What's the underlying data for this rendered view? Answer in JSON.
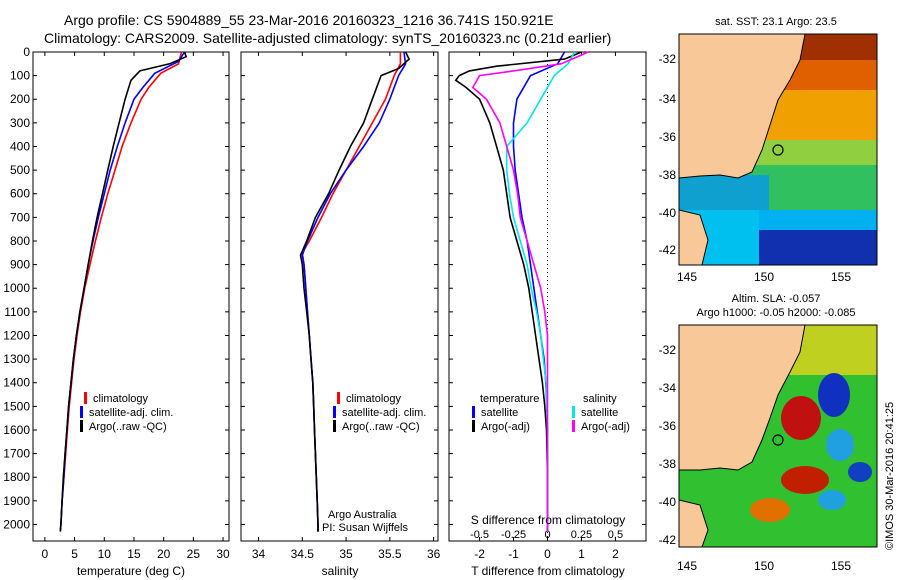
{
  "header": {
    "line1": "Argo profile: CS 5904889_55 23-Mar-2016 20160323_1216 36.741S 150.921E",
    "line2": "Climatology: CARS2009. Satellite-adjusted climatology: synTS_20160323.nc (0.21d earlier)"
  },
  "colors": {
    "climatology": "#ff0000",
    "satellite": "#0000ff",
    "argo": "#000000",
    "satellite_salinity": "#00e5ee",
    "argo_adj_salinity": "#ff00ff"
  },
  "chart_data": [
    {
      "type": "line",
      "xlabel": "temperature (deg C)",
      "xticks": [
        0,
        5,
        10,
        15,
        20,
        25,
        30
      ],
      "xlim": [
        -2,
        31
      ],
      "ylim": [
        2070,
        0
      ],
      "yticks": [
        0,
        100,
        200,
        300,
        400,
        500,
        600,
        700,
        800,
        900,
        1000,
        1100,
        1200,
        1300,
        1400,
        1500,
        1600,
        1700,
        1800,
        1900,
        2000
      ],
      "legend": [
        "climatology",
        "satellite-adj. clim.",
        "Argo(..raw -QC)"
      ],
      "series": [
        {
          "name": "climatology",
          "color": "#ff0000",
          "points": [
            [
              23.0,
              0
            ],
            [
              22.5,
              50
            ],
            [
              19.5,
              90
            ],
            [
              17.5,
              150
            ],
            [
              16.2,
              200
            ],
            [
              14.5,
              300
            ],
            [
              13.0,
              400
            ],
            [
              11.8,
              500
            ],
            [
              10.6,
              600
            ],
            [
              9.5,
              700
            ],
            [
              8.5,
              800
            ],
            [
              7.6,
              900
            ],
            [
              6.7,
              1000
            ],
            [
              6.0,
              1100
            ],
            [
              5.4,
              1200
            ],
            [
              4.9,
              1300
            ],
            [
              4.5,
              1400
            ],
            [
              4.1,
              1500
            ],
            [
              3.8,
              1600
            ],
            [
              3.5,
              1700
            ],
            [
              3.2,
              1800
            ],
            [
              2.9,
              1900
            ],
            [
              2.7,
              2000
            ],
            [
              2.6,
              2030
            ]
          ]
        },
        {
          "name": "satellite-adj. clim.",
          "color": "#0000ff",
          "points": [
            [
              23.5,
              0
            ],
            [
              22.5,
              40
            ],
            [
              18.5,
              90
            ],
            [
              16.5,
              150
            ],
            [
              15.0,
              200
            ],
            [
              13.5,
              300
            ],
            [
              12.2,
              400
            ],
            [
              11.0,
              500
            ],
            [
              10.0,
              600
            ],
            [
              9.0,
              700
            ],
            [
              8.1,
              800
            ],
            [
              7.3,
              900
            ],
            [
              6.6,
              1000
            ],
            [
              5.9,
              1100
            ],
            [
              5.3,
              1200
            ],
            [
              4.8,
              1300
            ],
            [
              4.4,
              1400
            ],
            [
              4.0,
              1500
            ],
            [
              3.7,
              1600
            ],
            [
              3.4,
              1700
            ],
            [
              3.2,
              1800
            ],
            [
              2.9,
              1900
            ],
            [
              2.7,
              2000
            ],
            [
              2.6,
              2030
            ]
          ]
        },
        {
          "name": "Argo(..raw -QC)",
          "color": "#000000",
          "points": [
            [
              23.5,
              0
            ],
            [
              23.8,
              20
            ],
            [
              21.0,
              50
            ],
            [
              16.0,
              80
            ],
            [
              14.5,
              120
            ],
            [
              13.5,
              200
            ],
            [
              12.5,
              300
            ],
            [
              11.5,
              400
            ],
            [
              10.6,
              500
            ],
            [
              9.7,
              600
            ],
            [
              8.8,
              700
            ],
            [
              8.0,
              800
            ],
            [
              7.3,
              900
            ],
            [
              6.6,
              1000
            ],
            [
              5.9,
              1100
            ],
            [
              5.3,
              1200
            ],
            [
              4.8,
              1300
            ],
            [
              4.4,
              1400
            ],
            [
              4.0,
              1500
            ],
            [
              3.7,
              1600
            ],
            [
              3.4,
              1700
            ],
            [
              3.1,
              1800
            ],
            [
              2.9,
              1900
            ],
            [
              2.7,
              2000
            ],
            [
              2.6,
              2030
            ]
          ]
        }
      ]
    },
    {
      "type": "line",
      "xlabel": "salinity",
      "xticks": [
        34,
        34.5,
        35,
        35.5,
        36
      ],
      "xlim": [
        33.8,
        36.05
      ],
      "ylim": [
        2070,
        0
      ],
      "legend": [
        "climatology",
        "satellite-adj. clim.",
        "Argo(..raw -QC)"
      ],
      "annotation": [
        "Argo Australia",
        "PI: Susan Wijffels"
      ],
      "series": [
        {
          "name": "climatology",
          "color": "#ff0000",
          "points": [
            [
              35.62,
              0
            ],
            [
              35.62,
              50
            ],
            [
              35.55,
              100
            ],
            [
              35.45,
              200
            ],
            [
              35.3,
              300
            ],
            [
              35.15,
              400
            ],
            [
              35.0,
              500
            ],
            [
              34.85,
              600
            ],
            [
              34.72,
              700
            ],
            [
              34.58,
              800
            ],
            [
              34.5,
              850
            ],
            [
              34.52,
              900
            ],
            [
              34.54,
              1000
            ],
            [
              34.56,
              1100
            ],
            [
              34.58,
              1200
            ],
            [
              34.6,
              1300
            ],
            [
              34.62,
              1400
            ],
            [
              34.63,
              1500
            ],
            [
              34.64,
              1600
            ],
            [
              34.65,
              1700
            ],
            [
              34.66,
              1800
            ],
            [
              34.67,
              1900
            ],
            [
              34.68,
              2000
            ],
            [
              34.68,
              2030
            ]
          ]
        },
        {
          "name": "satellite-adj. clim.",
          "color": "#0000ff",
          "points": [
            [
              35.66,
              0
            ],
            [
              35.68,
              50
            ],
            [
              35.6,
              100
            ],
            [
              35.5,
              200
            ],
            [
              35.38,
              300
            ],
            [
              35.2,
              400
            ],
            [
              35.0,
              500
            ],
            [
              34.82,
              600
            ],
            [
              34.68,
              700
            ],
            [
              34.56,
              800
            ],
            [
              34.5,
              860
            ],
            [
              34.52,
              900
            ],
            [
              34.54,
              1000
            ],
            [
              34.56,
              1100
            ],
            [
              34.58,
              1200
            ],
            [
              34.6,
              1300
            ],
            [
              34.62,
              1400
            ],
            [
              34.63,
              1500
            ],
            [
              34.64,
              1600
            ],
            [
              34.65,
              1700
            ],
            [
              34.66,
              1800
            ],
            [
              34.67,
              1900
            ],
            [
              34.68,
              2000
            ],
            [
              34.68,
              2030
            ]
          ]
        },
        {
          "name": "Argo(..raw -QC)",
          "color": "#000000",
          "points": [
            [
              35.68,
              0
            ],
            [
              35.72,
              30
            ],
            [
              35.6,
              70
            ],
            [
              35.4,
              100
            ],
            [
              35.3,
              200
            ],
            [
              35.2,
              300
            ],
            [
              35.05,
              400
            ],
            [
              34.92,
              500
            ],
            [
              34.8,
              600
            ],
            [
              34.65,
              700
            ],
            [
              34.55,
              800
            ],
            [
              34.48,
              860
            ],
            [
              34.5,
              900
            ],
            [
              34.52,
              1000
            ],
            [
              34.55,
              1100
            ],
            [
              34.58,
              1200
            ],
            [
              34.6,
              1300
            ],
            [
              34.62,
              1400
            ],
            [
              34.63,
              1500
            ],
            [
              34.64,
              1600
            ],
            [
              34.65,
              1700
            ],
            [
              34.66,
              1800
            ],
            [
              34.67,
              1900
            ],
            [
              34.68,
              2000
            ],
            [
              34.68,
              2030
            ]
          ]
        }
      ]
    },
    {
      "type": "line",
      "xlabel": "T difference from climatology",
      "xlabel_top": "S difference from climatology",
      "xticks": [
        -2,
        -1,
        0,
        1,
        2
      ],
      "xtick_labels": [
        "-2",
        "-1",
        "0",
        "1",
        "2"
      ],
      "top_ticks": [
        -0.5,
        -0.25,
        0,
        0.25,
        0.5
      ],
      "top_tick_labels": [
        "-0.5",
        "-0.25",
        "0",
        "0.25",
        "0.5"
      ],
      "xlim": [
        -2.9,
        2.9
      ],
      "ylim": [
        2070,
        0
      ],
      "legend_left": [
        "temperature",
        "satellite",
        "Argo(-adj)"
      ],
      "legend_right": [
        "salinity",
        "satellite",
        "Argo(-adj)"
      ],
      "series": [
        {
          "name": "satellite",
          "color": "#0000ff",
          "points": [
            [
              0.5,
              0
            ],
            [
              0.3,
              50
            ],
            [
              -0.5,
              100
            ],
            [
              -0.9,
              200
            ],
            [
              -1.0,
              300
            ],
            [
              -1.0,
              400
            ],
            [
              -0.95,
              500
            ],
            [
              -0.85,
              600
            ],
            [
              -0.75,
              700
            ],
            [
              -0.6,
              800
            ],
            [
              -0.5,
              900
            ],
            [
              -0.4,
              1000
            ],
            [
              -0.3,
              1100
            ],
            [
              -0.2,
              1200
            ],
            [
              -0.1,
              1300
            ],
            [
              -0.05,
              1400
            ],
            [
              -0.02,
              1500
            ],
            [
              0,
              1600
            ],
            [
              0,
              1800
            ],
            [
              0,
              2030
            ]
          ]
        },
        {
          "name": "Argo(-adj)",
          "color": "#000000",
          "points": [
            [
              1.0,
              0
            ],
            [
              0.5,
              30
            ],
            [
              -1.5,
              60
            ],
            [
              -2.3,
              80
            ],
            [
              -2.6,
              100
            ],
            [
              -2.7,
              120
            ],
            [
              -2.4,
              150
            ],
            [
              -2.0,
              200
            ],
            [
              -1.7,
              300
            ],
            [
              -1.5,
              400
            ],
            [
              -1.3,
              500
            ],
            [
              -1.2,
              600
            ],
            [
              -1.1,
              700
            ],
            [
              -0.9,
              800
            ],
            [
              -0.7,
              900
            ],
            [
              -0.55,
              1000
            ],
            [
              -0.45,
              1100
            ],
            [
              -0.35,
              1200
            ],
            [
              -0.25,
              1300
            ],
            [
              -0.15,
              1400
            ],
            [
              -0.08,
              1500
            ],
            [
              -0.03,
              1600
            ],
            [
              0,
              1800
            ],
            [
              0,
              2030
            ]
          ]
        },
        {
          "name": "satellite (salinity)",
          "color": "#00e5ee",
          "points": [
            [
              0.2,
              0
            ],
            [
              0.15,
              50
            ],
            [
              0.05,
              100
            ],
            [
              -0.05,
              200
            ],
            [
              -0.15,
              300
            ],
            [
              -0.3,
              400
            ],
            [
              -0.3,
              500
            ],
            [
              -0.28,
              600
            ],
            [
              -0.25,
              700
            ],
            [
              -0.2,
              800
            ],
            [
              -0.15,
              900
            ],
            [
              -0.12,
              1000
            ],
            [
              -0.08,
              1100
            ],
            [
              -0.05,
              1200
            ],
            [
              -0.03,
              1300
            ],
            [
              -0.01,
              1400
            ],
            [
              0,
              1600
            ],
            [
              0,
              2030
            ]
          ]
        },
        {
          "name": "Argo(-adj) (salinity)",
          "color": "#ff00ff",
          "points": [
            [
              0.3,
              0
            ],
            [
              0.1,
              50
            ],
            [
              -0.25,
              80
            ],
            [
              -0.5,
              100
            ],
            [
              -0.55,
              150
            ],
            [
              -0.45,
              200
            ],
            [
              -0.35,
              300
            ],
            [
              -0.3,
              400
            ],
            [
              -0.25,
              500
            ],
            [
              -0.22,
              600
            ],
            [
              -0.2,
              700
            ],
            [
              -0.15,
              800
            ],
            [
              -0.1,
              900
            ],
            [
              -0.05,
              1000
            ],
            [
              -0.02,
              1100
            ],
            [
              0,
              1200
            ],
            [
              0,
              1600
            ],
            [
              0,
              2030
            ]
          ]
        }
      ]
    }
  ],
  "maps": [
    {
      "title": "sat. SST: 23.1  Argo: 23.5",
      "xticks": [
        145,
        150,
        155
      ],
      "yticks": [
        -32,
        -34,
        -36,
        -38,
        -40,
        -42
      ]
    },
    {
      "title_line1": "Altim. SLA: -0.057",
      "title_line2": "Argo h1000: -0.05 h2000: -0.085",
      "xticks": [
        145,
        150,
        155
      ],
      "yticks": [
        -32,
        -34,
        -36,
        -38,
        -40,
        -42
      ]
    }
  ],
  "credit": "©IMOS 30-Mar-2016 20:41:25"
}
